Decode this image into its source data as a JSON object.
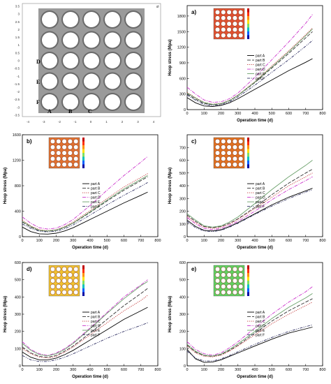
{
  "model": {
    "x_ticks": [
      "-4",
      "-3",
      "-2",
      "-1",
      "0",
      "1",
      "2",
      "3",
      "4"
    ],
    "y_ticks": [
      "3.5",
      "3",
      "2.5",
      "2",
      "1.5",
      "1",
      "0.5",
      "0",
      "-0.5",
      "-1",
      "-1.5",
      "-2",
      "-2.5",
      "-3",
      "-3.5"
    ],
    "corner_label": "Ø",
    "part_labels": [
      "A",
      "B",
      "C",
      "D",
      "E",
      "F"
    ],
    "colors": {
      "plate": "#9a9a9a",
      "hole_ring": "#6a6a6a",
      "hole": "#ffffff"
    }
  },
  "legend_entries": [
    "part A",
    "part B",
    "part C",
    "part D",
    "part E",
    "part F"
  ],
  "series_styles": [
    {
      "color": "#000000",
      "dash": ""
    },
    {
      "color": "#333333",
      "dash": "5,2"
    },
    {
      "color": "#c03030",
      "dash": "1.2,1.5"
    },
    {
      "color": "#cc33cc",
      "dash": "5,1.5,1.2,1.5"
    },
    {
      "color": "#6aa06a",
      "dash": ""
    },
    {
      "color": "#333366",
      "dash": "4,1.5,1.2,1.5,1.2,1.5"
    }
  ],
  "chart_data": [
    {
      "id": "a",
      "type": "line",
      "panel_label": "a)",
      "xlabel": "Operation time (d)",
      "ylabel": "Hoop stress (Mpa)",
      "xlim": [
        0,
        800
      ],
      "ylim": [
        0,
        2000
      ],
      "xticks": [
        0,
        100,
        200,
        300,
        400,
        500,
        600,
        700,
        800
      ],
      "yticks": [
        0,
        300,
        600,
        900,
        1200,
        1500,
        1800
      ],
      "inset_color": "#e05030",
      "series": [
        {
          "name": "part A",
          "x": [
            0,
            50,
            100,
            150,
            200,
            250,
            300,
            400,
            500,
            600,
            700,
            740
          ],
          "y": [
            230,
            130,
            70,
            60,
            80,
            130,
            210,
            390,
            570,
            750,
            910,
            980
          ]
        },
        {
          "name": "part B",
          "x": [
            0,
            50,
            100,
            150,
            200,
            250,
            300,
            400,
            500,
            600,
            700,
            740
          ],
          "y": [
            300,
            200,
            120,
            95,
            110,
            170,
            270,
            520,
            800,
            1080,
            1380,
            1500
          ]
        },
        {
          "name": "part C",
          "x": [
            0,
            50,
            100,
            150,
            200,
            250,
            300,
            400,
            500,
            600,
            700,
            740
          ],
          "y": [
            330,
            230,
            140,
            105,
            120,
            180,
            280,
            540,
            840,
            1130,
            1440,
            1570
          ]
        },
        {
          "name": "part D",
          "x": [
            0,
            50,
            100,
            150,
            200,
            250,
            300,
            400,
            500,
            600,
            700,
            740
          ],
          "y": [
            430,
            300,
            185,
            140,
            150,
            210,
            320,
            620,
            960,
            1300,
            1660,
            1830
          ]
        },
        {
          "name": "part E",
          "x": [
            0,
            50,
            100,
            150,
            200,
            250,
            300,
            400,
            500,
            600,
            700,
            740
          ],
          "y": [
            320,
            220,
            135,
            100,
            115,
            175,
            275,
            530,
            820,
            1110,
            1420,
            1550
          ]
        },
        {
          "name": "part F",
          "x": [
            0,
            50,
            100,
            150,
            200,
            250,
            300,
            400,
            500,
            600,
            700,
            740
          ],
          "y": [
            280,
            180,
            100,
            80,
            95,
            150,
            245,
            470,
            720,
            960,
            1220,
            1330
          ]
        }
      ]
    },
    {
      "id": "b",
      "type": "line",
      "panel_label": "b)",
      "xlabel": "Operation time (d)",
      "ylabel": "Hoop stress (Mpa)",
      "xlim": [
        0,
        800
      ],
      "ylim": [
        0,
        1600
      ],
      "xticks": [
        0,
        100,
        200,
        300,
        400,
        500,
        600,
        700,
        800
      ],
      "yticks": [
        0,
        400,
        800,
        1200,
        1600
      ],
      "inset_color": "#e07030",
      "series": [
        {
          "name": "part A",
          "x": [
            0,
            50,
            100,
            150,
            200,
            250,
            300,
            400,
            500,
            600,
            700,
            740
          ],
          "y": [
            150,
            80,
            45,
            40,
            55,
            90,
            140,
            270,
            400,
            530,
            650,
            700
          ]
        },
        {
          "name": "part B",
          "x": [
            0,
            50,
            100,
            150,
            200,
            250,
            300,
            400,
            500,
            600,
            700,
            740
          ],
          "y": [
            230,
            150,
            95,
            85,
            100,
            145,
            210,
            380,
            560,
            730,
            880,
            940
          ]
        },
        {
          "name": "part C",
          "x": [
            0,
            50,
            100,
            150,
            200,
            250,
            300,
            400,
            500,
            600,
            700,
            740
          ],
          "y": [
            260,
            170,
            110,
            95,
            110,
            160,
            230,
            410,
            600,
            780,
            930,
            990
          ]
        },
        {
          "name": "part D",
          "x": [
            0,
            50,
            100,
            150,
            200,
            250,
            300,
            400,
            500,
            600,
            700,
            740
          ],
          "y": [
            310,
            210,
            140,
            120,
            135,
            190,
            270,
            490,
            730,
            960,
            1170,
            1260
          ]
        },
        {
          "name": "part E",
          "x": [
            0,
            50,
            100,
            150,
            200,
            250,
            300,
            400,
            500,
            600,
            700,
            740
          ],
          "y": [
            240,
            160,
            100,
            90,
            105,
            150,
            215,
            390,
            575,
            750,
            900,
            960
          ]
        },
        {
          "name": "part F",
          "x": [
            0,
            50,
            100,
            150,
            200,
            250,
            300,
            400,
            500,
            600,
            700,
            740
          ],
          "y": [
            200,
            130,
            85,
            75,
            85,
            125,
            185,
            340,
            500,
            650,
            790,
            850
          ]
        }
      ]
    },
    {
      "id": "c",
      "type": "line",
      "panel_label": "c)",
      "xlabel": "Operation time (d)",
      "ylabel": "Hoop stress (Mpa)",
      "xlim": [
        0,
        800
      ],
      "ylim": [
        0,
        800
      ],
      "xticks": [
        0,
        100,
        200,
        300,
        400,
        500,
        600,
        700,
        800
      ],
      "yticks": [
        0,
        100,
        200,
        300,
        400,
        500,
        600,
        700
      ],
      "inset_color": "#e07020",
      "series": [
        {
          "name": "part A",
          "x": [
            0,
            50,
            100,
            150,
            200,
            250,
            300,
            400,
            500,
            600,
            700,
            740
          ],
          "y": [
            130,
            80,
            50,
            45,
            55,
            80,
            110,
            180,
            250,
            310,
            360,
            380
          ]
        },
        {
          "name": "part B",
          "x": [
            0,
            50,
            100,
            150,
            200,
            250,
            300,
            400,
            500,
            600,
            700,
            740
          ],
          "y": [
            170,
            120,
            80,
            70,
            80,
            105,
            140,
            230,
            330,
            420,
            500,
            530
          ]
        },
        {
          "name": "part C",
          "x": [
            0,
            50,
            100,
            150,
            200,
            250,
            300,
            400,
            500,
            600,
            700,
            740
          ],
          "y": [
            160,
            110,
            75,
            65,
            75,
            100,
            135,
            220,
            310,
            400,
            470,
            500
          ]
        },
        {
          "name": "part D",
          "x": [
            0,
            50,
            100,
            150,
            200,
            250,
            300,
            400,
            500,
            600,
            700,
            740
          ],
          "y": [
            150,
            100,
            65,
            55,
            65,
            90,
            120,
            200,
            290,
            370,
            440,
            470
          ]
        },
        {
          "name": "part E",
          "x": [
            0,
            50,
            100,
            150,
            200,
            250,
            300,
            400,
            500,
            600,
            700,
            740
          ],
          "y": [
            180,
            130,
            85,
            75,
            85,
            115,
            155,
            260,
            370,
            470,
            560,
            600
          ]
        },
        {
          "name": "part F",
          "x": [
            0,
            50,
            100,
            150,
            200,
            250,
            300,
            400,
            500,
            600,
            700,
            740
          ],
          "y": [
            120,
            70,
            45,
            40,
            50,
            75,
            105,
            175,
            240,
            300,
            350,
            370
          ]
        }
      ]
    },
    {
      "id": "d",
      "type": "line",
      "panel_label": "d)",
      "xlabel": "Operation time (d)",
      "ylabel": "Hoop stress (Mpa)",
      "xlim": [
        0,
        800
      ],
      "ylim": [
        0,
        600
      ],
      "xticks": [
        0,
        100,
        200,
        300,
        400,
        500,
        600,
        700,
        800
      ],
      "yticks": [
        0,
        100,
        200,
        300,
        400,
        500,
        600
      ],
      "inset_color": "#f0c030",
      "series": [
        {
          "name": "part A",
          "x": [
            0,
            50,
            100,
            150,
            200,
            250,
            300,
            400,
            500,
            600,
            700,
            740
          ],
          "y": [
            80,
            50,
            35,
            35,
            45,
            65,
            90,
            150,
            210,
            270,
            320,
            340
          ]
        },
        {
          "name": "part B",
          "x": [
            0,
            50,
            100,
            150,
            200,
            250,
            300,
            400,
            500,
            600,
            700,
            740
          ],
          "y": [
            110,
            75,
            55,
            50,
            60,
            85,
            115,
            190,
            270,
            350,
            420,
            450
          ]
        },
        {
          "name": "part C",
          "x": [
            0,
            50,
            100,
            150,
            200,
            250,
            300,
            400,
            500,
            600,
            700,
            740
          ],
          "y": [
            100,
            70,
            50,
            45,
            55,
            80,
            110,
            180,
            250,
            320,
            380,
            410
          ]
        },
        {
          "name": "part D",
          "x": [
            0,
            50,
            100,
            150,
            200,
            250,
            300,
            400,
            500,
            600,
            700,
            740
          ],
          "y": [
            140,
            95,
            70,
            60,
            75,
            100,
            135,
            220,
            310,
            400,
            470,
            500
          ]
        },
        {
          "name": "part E",
          "x": [
            0,
            50,
            100,
            150,
            200,
            250,
            300,
            400,
            500,
            600,
            700,
            740
          ],
          "y": [
            130,
            90,
            65,
            58,
            70,
            95,
            130,
            215,
            305,
            390,
            465,
            490
          ]
        },
        {
          "name": "part F",
          "x": [
            0,
            50,
            100,
            150,
            200,
            250,
            300,
            400,
            500,
            600,
            700,
            740
          ],
          "y": [
            60,
            35,
            25,
            25,
            35,
            50,
            70,
            115,
            160,
            200,
            235,
            250
          ]
        }
      ]
    },
    {
      "id": "e",
      "type": "line",
      "panel_label": "e)",
      "xlabel": "Operation time (d)",
      "ylabel": "Hoop stress (Mpa)",
      "xlim": [
        0,
        800
      ],
      "ylim": [
        0,
        600
      ],
      "xticks": [
        0,
        100,
        200,
        300,
        400,
        500,
        600,
        700,
        800
      ],
      "yticks": [
        0,
        100,
        200,
        300,
        400,
        500,
        600
      ],
      "inset_color": "#60d060",
      "series": [
        {
          "name": "part A",
          "x": [
            0,
            50,
            100,
            150,
            200,
            250,
            300,
            400,
            500,
            600,
            700,
            740
          ],
          "y": [
            95,
            40,
            20,
            22,
            35,
            55,
            75,
            115,
            155,
            190,
            215,
            225
          ]
        },
        {
          "name": "part B",
          "x": [
            0,
            50,
            100,
            150,
            200,
            250,
            300,
            400,
            500,
            600,
            700,
            740
          ],
          "y": [
            120,
            80,
            60,
            55,
            65,
            90,
            120,
            190,
            260,
            320,
            370,
            390
          ]
        },
        {
          "name": "part C",
          "x": [
            0,
            50,
            100,
            150,
            200,
            250,
            300,
            400,
            500,
            600,
            700,
            740
          ],
          "y": [
            115,
            75,
            55,
            52,
            62,
            85,
            115,
            180,
            245,
            300,
            350,
            370
          ]
        },
        {
          "name": "part D",
          "x": [
            0,
            50,
            100,
            150,
            200,
            250,
            300,
            400,
            500,
            600,
            700,
            740
          ],
          "y": [
            140,
            95,
            70,
            62,
            75,
            105,
            140,
            220,
            300,
            370,
            430,
            460
          ]
        },
        {
          "name": "part E",
          "x": [
            0,
            50,
            100,
            150,
            200,
            250,
            300,
            400,
            500,
            600,
            700,
            740
          ],
          "y": [
            125,
            85,
            62,
            57,
            68,
            95,
            128,
            200,
            275,
            340,
            395,
            420
          ]
        },
        {
          "name": "part F",
          "x": [
            0,
            50,
            100,
            150,
            200,
            250,
            300,
            400,
            500,
            600,
            700,
            740
          ],
          "y": [
            85,
            45,
            28,
            28,
            40,
            60,
            82,
            125,
            165,
            200,
            228,
            238
          ]
        }
      ]
    }
  ]
}
